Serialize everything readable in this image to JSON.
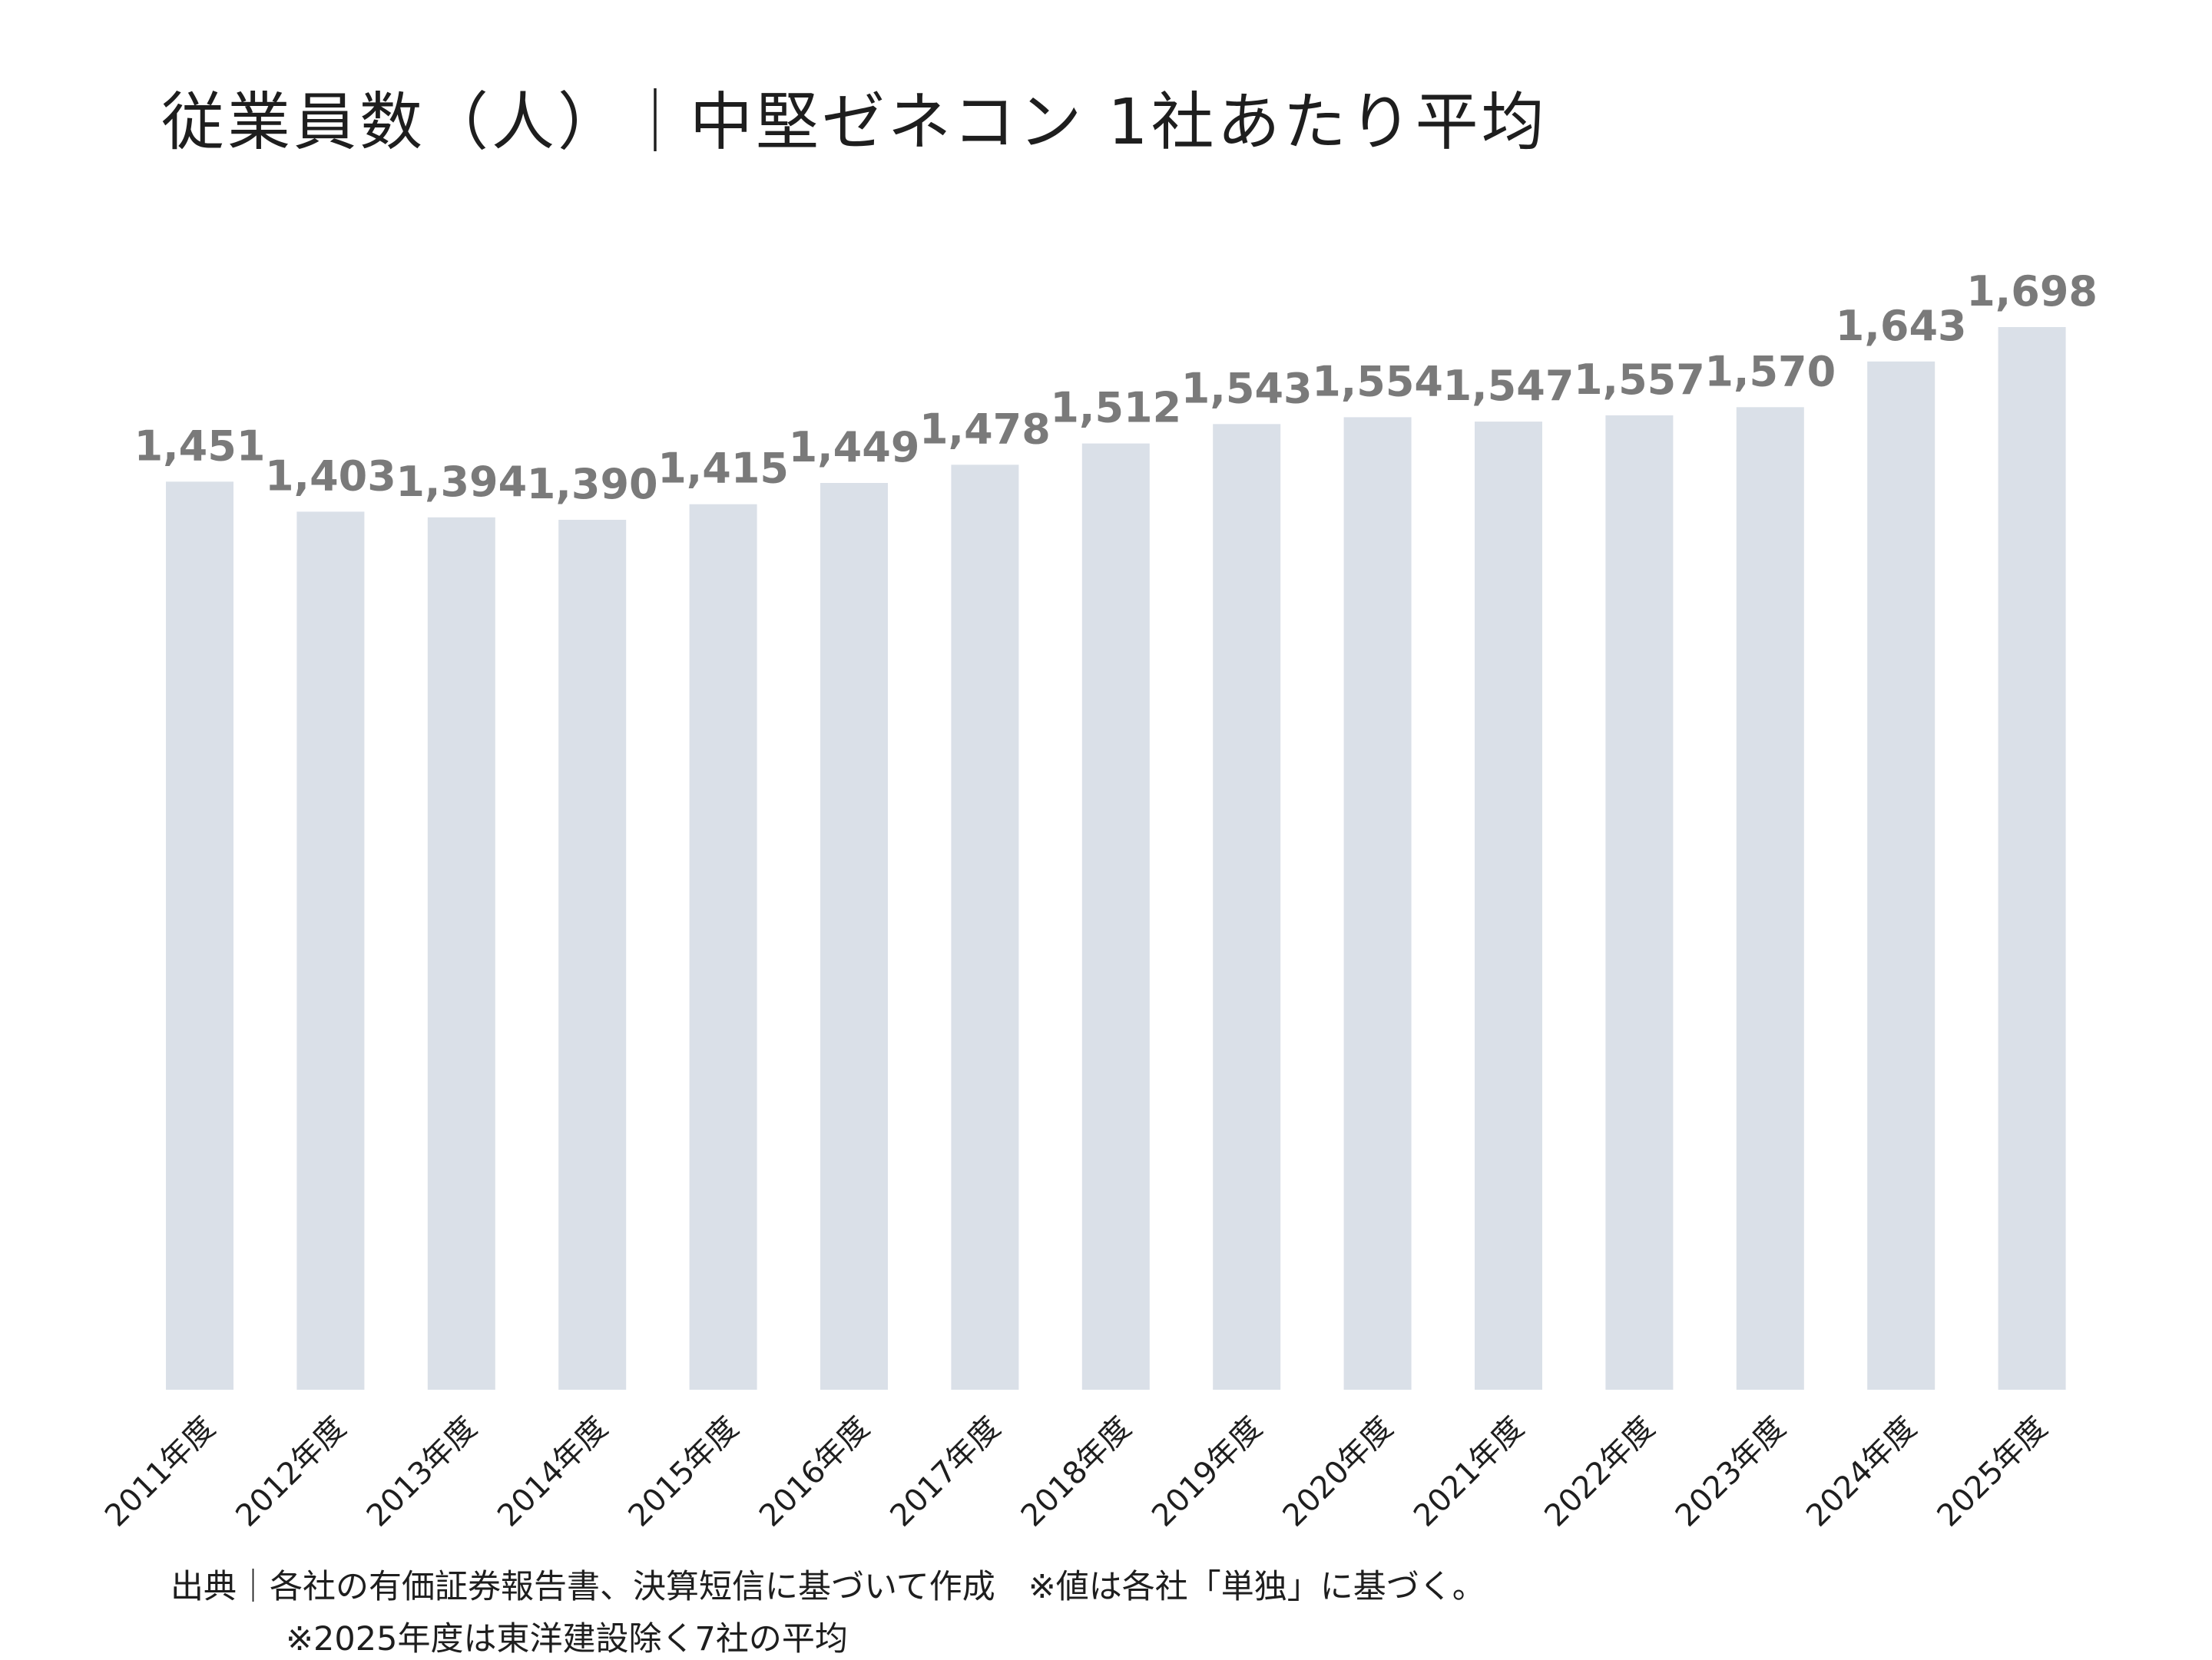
{
  "title": "従業員数（人）｜中堅ゼネコン 1社あたり平均",
  "chart_data": {
    "type": "bar",
    "categories": [
      "2011年度",
      "2012年度",
      "2013年度",
      "2014年度",
      "2015年度",
      "2016年度",
      "2017年度",
      "2018年度",
      "2019年度",
      "2020年度",
      "2021年度",
      "2022年度",
      "2023年度",
      "2024年度",
      "2025年度"
    ],
    "values": [
      1451,
      1403,
      1394,
      1390,
      1415,
      1449,
      1478,
      1512,
      1543,
      1554,
      1547,
      1557,
      1570,
      1643,
      1698
    ],
    "value_labels": [
      "1,451",
      "1,403",
      "1,394",
      "1,390",
      "1,415",
      "1,449",
      "1,478",
      "1,512",
      "1,543",
      "1,554",
      "1,547",
      "1,557",
      "1,570",
      "1,643",
      "1,698"
    ],
    "title": "従業員数（人）｜中堅ゼネコン 1社あたり平均",
    "xlabel": "",
    "ylabel": "",
    "ylim": [
      0,
      1698
    ],
    "grid": false,
    "legend": "none",
    "bar_color": "#dae0e8",
    "label_color": "#7a7a7a"
  },
  "footnotes": {
    "source": "出典｜各社の有価証券報告書、決算短信に基づいて作成　※値は各社「単独」に基づく。",
    "note_2025": "※2025年度は東洋建設除く7社の平均"
  }
}
